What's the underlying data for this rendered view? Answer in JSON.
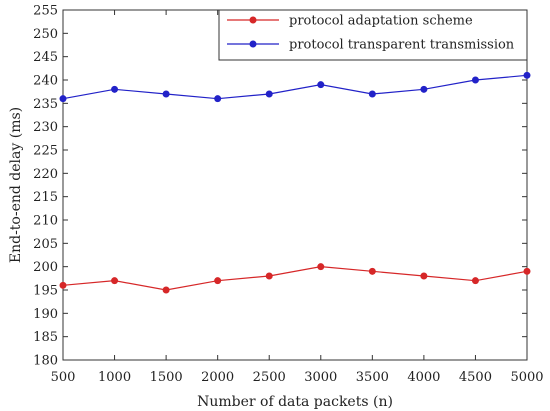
{
  "chart_data": {
    "type": "line",
    "title": "",
    "xlabel": "Number of data packets (n)",
    "ylabel": "End-to-end delay (ms)",
    "x": [
      500,
      1000,
      1500,
      2000,
      2500,
      3000,
      3500,
      4000,
      4500,
      5000
    ],
    "xlim": [
      500,
      5000
    ],
    "ylim": [
      180,
      255
    ],
    "xticks": [
      "500",
      "1000",
      "1500",
      "2000",
      "2500",
      "3000",
      "3500",
      "4000",
      "4500",
      "5000"
    ],
    "yticks": [
      "180",
      "185",
      "190",
      "195",
      "200",
      "205",
      "210",
      "215",
      "220",
      "225",
      "230",
      "235",
      "240",
      "245",
      "250",
      "255"
    ],
    "grid": false,
    "legend_position": "top-right",
    "series": [
      {
        "name": "protocol adaptation scheme",
        "color": "#d62728",
        "values": [
          196,
          197,
          195,
          197,
          198,
          200,
          199,
          198,
          197,
          199
        ]
      },
      {
        "name": "protocol transparent transmission",
        "color": "#2222c8",
        "values": [
          236,
          238,
          237,
          236,
          237,
          239,
          237,
          238,
          240,
          241
        ]
      }
    ]
  }
}
